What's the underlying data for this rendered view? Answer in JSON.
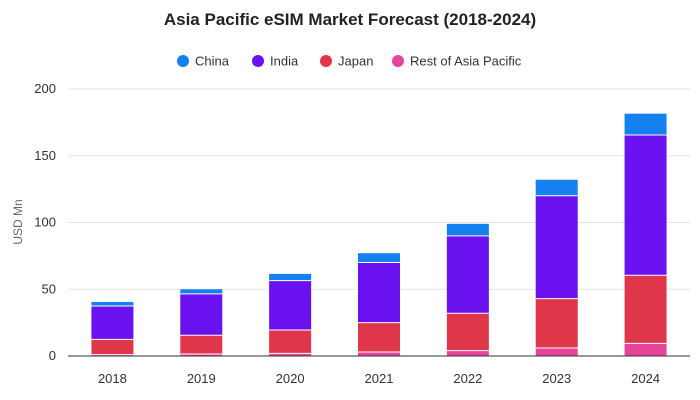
{
  "chart_data": {
    "type": "bar",
    "stacked": true,
    "title": "Asia Pacific eSIM Market Forecast (2018-2024)",
    "xlabel": "",
    "ylabel": "USD Mn",
    "categories": [
      "2018",
      "2019",
      "2020",
      "2021",
      "2022",
      "2023",
      "2024"
    ],
    "ylim": [
      0,
      200
    ],
    "yticks": [
      "0",
      "50",
      "100",
      "150",
      "200"
    ],
    "grid": true,
    "legend_position": "top-center",
    "series": [
      {
        "name": "Rest of Asia Pacific",
        "color": "#e8439a",
        "values": [
          1,
          1.5,
          2,
          3,
          4,
          6,
          9.5
        ]
      },
      {
        "name": "Japan",
        "color": "#e0364a",
        "values": [
          11.5,
          14,
          17.5,
          22,
          28,
          37,
          51
        ]
      },
      {
        "name": "India",
        "color": "#6a11f0",
        "values": [
          25,
          31,
          37,
          45,
          58,
          77,
          105
        ]
      },
      {
        "name": "China",
        "color": "#1581f0",
        "values": [
          3,
          3.5,
          5,
          7,
          9,
          12,
          16
        ]
      }
    ],
    "legend_order": [
      "China",
      "India",
      "Japan",
      "Rest of Asia Pacific"
    ]
  }
}
